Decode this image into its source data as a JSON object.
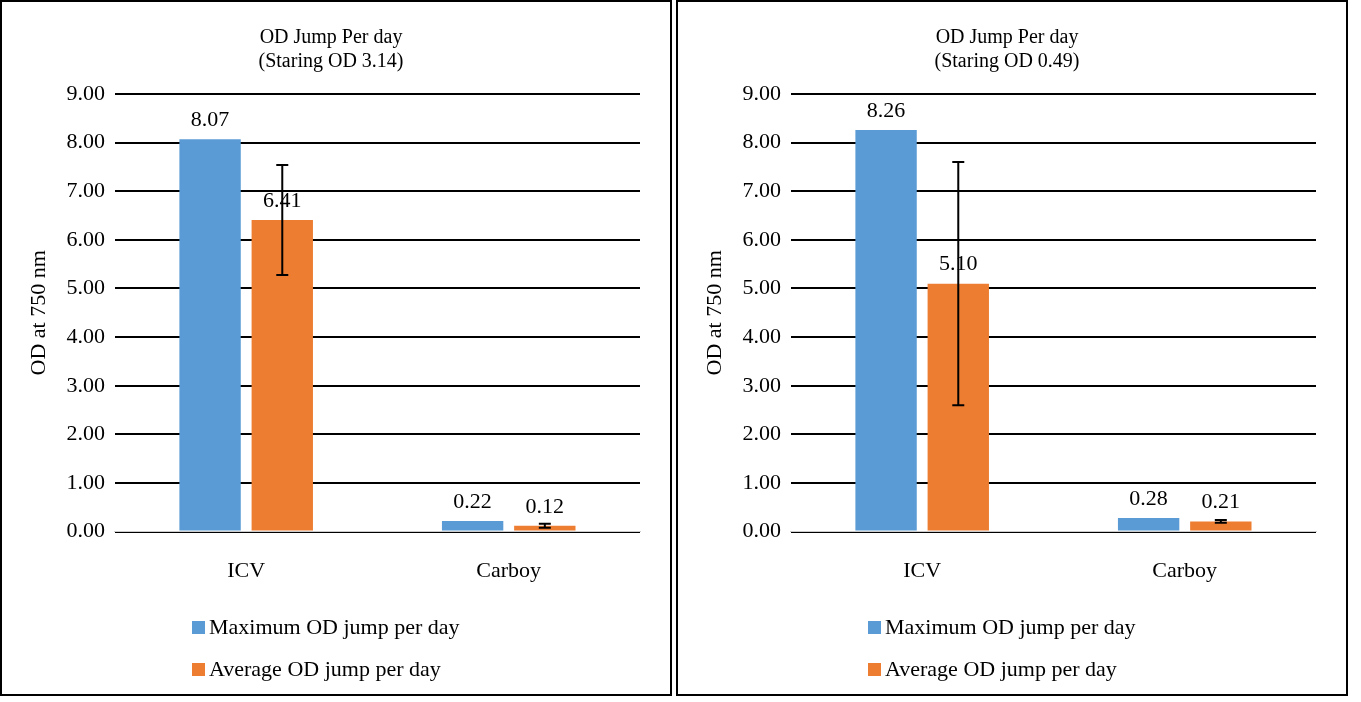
{
  "chart_data": [
    {
      "type": "bar",
      "title": "OD Jump Per day",
      "subtitle": "(Staring OD 3.14)",
      "ylabel": "OD at 750 nm",
      "categories": [
        "ICV",
        "Carboy"
      ],
      "series": [
        {
          "name": "Maximum OD jump per day",
          "color": "#5b9bd5",
          "values": [
            8.07,
            0.22
          ],
          "value_labels": [
            "8.07",
            "0.22"
          ]
        },
        {
          "name": "Average OD jump per day",
          "color": "#ed7d31",
          "values": [
            6.41,
            0.12
          ],
          "errors": [
            1.13,
            0.04
          ],
          "value_labels": [
            "6.41",
            "0.12"
          ]
        }
      ],
      "ylim": [
        0,
        9
      ],
      "yticks": [
        {
          "value": 0,
          "label": "0.00"
        },
        {
          "value": 1,
          "label": "1.00"
        },
        {
          "value": 2,
          "label": "2.00"
        },
        {
          "value": 3,
          "label": "3.00"
        },
        {
          "value": 4,
          "label": "4.00"
        },
        {
          "value": 5,
          "label": "5.00"
        },
        {
          "value": 6,
          "label": "6.00"
        },
        {
          "value": 7,
          "label": "7.00"
        },
        {
          "value": 8,
          "label": "8.00"
        },
        {
          "value": 9,
          "label": "9.00"
        }
      ],
      "grid": "y",
      "legend": "bottom"
    },
    {
      "type": "bar",
      "title": "OD Jump Per day",
      "subtitle": "(Staring OD 0.49)",
      "ylabel": "OD at 750 nm",
      "categories": [
        "ICV",
        "Carboy"
      ],
      "series": [
        {
          "name": "Maximum OD jump per day",
          "color": "#5b9bd5",
          "values": [
            8.26,
            0.28
          ],
          "value_labels": [
            "8.26",
            "0.28"
          ]
        },
        {
          "name": "Average OD jump per day",
          "color": "#ed7d31",
          "values": [
            5.1,
            0.21
          ],
          "errors": [
            2.5,
            0.03
          ],
          "value_labels": [
            "5.10",
            "0.21"
          ]
        }
      ],
      "ylim": [
        0,
        9
      ],
      "yticks": [
        {
          "value": 0,
          "label": "0.00"
        },
        {
          "value": 1,
          "label": "1.00"
        },
        {
          "value": 2,
          "label": "2.00"
        },
        {
          "value": 3,
          "label": "3.00"
        },
        {
          "value": 4,
          "label": "4.00"
        },
        {
          "value": 5,
          "label": "5.00"
        },
        {
          "value": 6,
          "label": "6.00"
        },
        {
          "value": 7,
          "label": "7.00"
        },
        {
          "value": 8,
          "label": "8.00"
        },
        {
          "value": 9,
          "label": "9.00"
        }
      ],
      "grid": "y",
      "legend": "bottom"
    }
  ]
}
